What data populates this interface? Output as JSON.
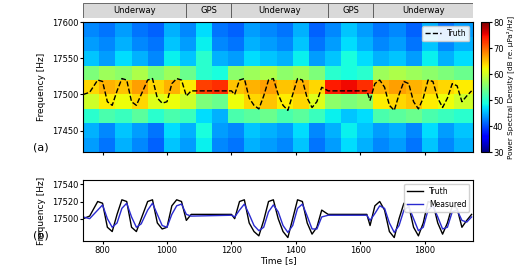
{
  "chart_data": [
    {
      "type": "heatmap",
      "ylabel": "Frequency [Hz]",
      "annotations": [
        "(a)"
      ],
      "xlim": [
        740,
        1950
      ],
      "xticks": [
        800,
        1000,
        1200,
        1400,
        1600,
        1800
      ],
      "ylim": [
        17420,
        17600
      ],
      "yticks": [
        17450,
        17500,
        17550,
        17600
      ],
      "tick_labels": "y",
      "legend": "upper right",
      "time_edges": [
        740,
        790,
        840,
        890,
        940,
        990,
        1040,
        1090,
        1140,
        1190,
        1240,
        1290,
        1340,
        1390,
        1440,
        1490,
        1540,
        1590,
        1640,
        1690,
        1740,
        1790,
        1840,
        1890,
        1950
      ],
      "frequency_edges": [
        17420,
        17440,
        17460,
        17480,
        17500,
        17520,
        17540,
        17560,
        17580,
        17600
      ],
      "cells": [
        [
          44,
          42,
          45,
          43,
          41,
          46,
          44,
          48,
          43,
          42,
          45,
          44,
          43,
          46,
          42,
          44,
          47,
          45,
          43,
          44,
          42,
          46,
          43,
          45
        ],
        [
          45,
          43,
          46,
          44,
          42,
          47,
          45,
          49,
          44,
          43,
          46,
          45,
          44,
          47,
          43,
          45,
          48,
          46,
          44,
          45,
          43,
          47,
          44,
          46
        ],
        [
          50,
          52,
          51,
          53,
          50,
          52,
          51,
          47,
          45,
          52,
          53,
          54,
          52,
          53,
          51,
          48,
          46,
          47,
          52,
          53,
          54,
          52,
          51,
          50
        ],
        [
          60,
          63,
          62,
          64,
          61,
          62,
          60,
          55,
          54,
          62,
          64,
          65,
          63,
          64,
          61,
          56,
          55,
          56,
          63,
          64,
          65,
          63,
          62,
          60
        ],
        [
          64,
          66,
          65,
          67,
          64,
          66,
          63,
          72,
          73,
          65,
          66,
          67,
          65,
          66,
          64,
          74,
          75,
          73,
          66,
          67,
          66,
          65,
          64,
          63
        ],
        [
          55,
          57,
          56,
          58,
          55,
          57,
          54,
          50,
          49,
          56,
          57,
          58,
          56,
          57,
          55,
          50,
          49,
          50,
          57,
          58,
          57,
          56,
          55,
          54
        ],
        [
          46,
          44,
          47,
          45,
          43,
          48,
          46,
          50,
          45,
          44,
          47,
          46,
          45,
          48,
          44,
          46,
          49,
          47,
          45,
          46,
          44,
          48,
          45,
          47
        ],
        [
          44,
          43,
          45,
          43,
          42,
          46,
          44,
          48,
          43,
          42,
          45,
          44,
          43,
          46,
          42,
          44,
          47,
          45,
          43,
          44,
          42,
          46,
          43,
          45
        ],
        [
          43,
          42,
          44,
          42,
          41,
          45,
          43,
          47,
          42,
          41,
          44,
          43,
          42,
          45,
          41,
          43,
          46,
          44,
          42,
          43,
          41,
          45,
          42,
          44
        ]
      ],
      "colorbar": {
        "label": "Power Spectral Density [dB re. µPa²/Hz]",
        "range": [
          30,
          80
        ],
        "ticks": [
          30,
          40,
          50,
          60,
          70,
          80
        ]
      },
      "segments": [
        {
          "label": "Underway",
          "start": 740,
          "end": 1060
        },
        {
          "label": "GPS",
          "start": 1060,
          "end": 1200
        },
        {
          "label": "Underway",
          "start": 1200,
          "end": 1500
        },
        {
          "label": "GPS",
          "start": 1500,
          "end": 1640
        },
        {
          "label": "Underway",
          "start": 1640,
          "end": 1950
        }
      ],
      "x": [
        740,
        760,
        785,
        800,
        815,
        830,
        845,
        860,
        875,
        890,
        905,
        920,
        940,
        955,
        970,
        985,
        1000,
        1015,
        1030,
        1045,
        1060,
        1075,
        1200,
        1210,
        1225,
        1240,
        1255,
        1270,
        1285,
        1300,
        1315,
        1330,
        1345,
        1360,
        1375,
        1390,
        1405,
        1420,
        1435,
        1450,
        1465,
        1480,
        1500,
        1620,
        1630,
        1645,
        1660,
        1675,
        1690,
        1705,
        1720,
        1735,
        1750,
        1765,
        1780,
        1795,
        1810,
        1825,
        1840,
        1855,
        1870,
        1885,
        1900,
        1915,
        1930,
        1945
      ],
      "series": [
        {
          "name": "Truth",
          "color": "#000000",
          "line_style": "dashed",
          "values": [
            17500,
            17503,
            17520,
            17518,
            17490,
            17485,
            17505,
            17522,
            17520,
            17490,
            17485,
            17500,
            17520,
            17522,
            17495,
            17488,
            17490,
            17515,
            17522,
            17520,
            17498,
            17505,
            17505,
            17500,
            17520,
            17522,
            17495,
            17485,
            17480,
            17498,
            17520,
            17522,
            17500,
            17485,
            17478,
            17500,
            17522,
            17520,
            17495,
            17482,
            17490,
            17510,
            17505,
            17505,
            17492,
            17515,
            17520,
            17510,
            17485,
            17478,
            17500,
            17518,
            17515,
            17490,
            17480,
            17495,
            17520,
            17518,
            17495,
            17482,
            17495,
            17515,
            17512,
            17490,
            17498,
            17505
          ]
        }
      ]
    },
    {
      "type": "line",
      "xlabel": "Time [s]",
      "ylabel": "Frequency [Hz]",
      "annotations": [
        "(b)"
      ],
      "xlim": [
        740,
        1950
      ],
      "xticks": [
        800,
        1000,
        1200,
        1400,
        1600,
        1800
      ],
      "ylim": [
        17474,
        17545
      ],
      "yticks": [
        17500,
        17520,
        17540
      ],
      "legend": "upper right",
      "x": [
        740,
        760,
        785,
        800,
        815,
        830,
        845,
        860,
        875,
        890,
        905,
        920,
        940,
        955,
        970,
        985,
        1000,
        1015,
        1030,
        1045,
        1060,
        1075,
        1200,
        1210,
        1225,
        1240,
        1255,
        1270,
        1285,
        1300,
        1315,
        1330,
        1345,
        1360,
        1375,
        1390,
        1405,
        1420,
        1435,
        1450,
        1465,
        1480,
        1500,
        1620,
        1630,
        1645,
        1660,
        1675,
        1690,
        1705,
        1720,
        1735,
        1750,
        1765,
        1780,
        1795,
        1810,
        1825,
        1840,
        1855,
        1870,
        1885,
        1900,
        1915,
        1930,
        1945
      ],
      "series": [
        {
          "name": "Truth",
          "color": "#000000",
          "line_style": "solid",
          "values": [
            17500,
            17503,
            17520,
            17518,
            17490,
            17485,
            17505,
            17522,
            17520,
            17490,
            17485,
            17500,
            17520,
            17522,
            17495,
            17488,
            17490,
            17515,
            17522,
            17520,
            17498,
            17505,
            17505,
            17500,
            17520,
            17522,
            17495,
            17485,
            17480,
            17498,
            17520,
            17522,
            17500,
            17485,
            17478,
            17500,
            17522,
            17520,
            17495,
            17482,
            17490,
            17510,
            17505,
            17505,
            17492,
            17515,
            17520,
            17510,
            17485,
            17478,
            17500,
            17518,
            17515,
            17490,
            17480,
            17495,
            17520,
            17518,
            17495,
            17482,
            17495,
            17515,
            17512,
            17490,
            17498,
            17505
          ]
        },
        {
          "name": "Measured",
          "color": "#2a2ad0",
          "line_style": "solid",
          "values": [
            17502,
            17500,
            17510,
            17516,
            17500,
            17490,
            17495,
            17512,
            17518,
            17502,
            17490,
            17494,
            17510,
            17518,
            17505,
            17492,
            17490,
            17505,
            17515,
            17517,
            17505,
            17503,
            17504,
            17502,
            17510,
            17517,
            17505,
            17492,
            17486,
            17490,
            17508,
            17516,
            17508,
            17492,
            17484,
            17492,
            17512,
            17517,
            17503,
            17488,
            17488,
            17502,
            17504,
            17504,
            17498,
            17506,
            17515,
            17512,
            17495,
            17484,
            17492,
            17510,
            17514,
            17500,
            17486,
            17490,
            17510,
            17515,
            17502,
            17488,
            17490,
            17508,
            17510,
            17498,
            17496,
            17502
          ]
        }
      ]
    }
  ]
}
